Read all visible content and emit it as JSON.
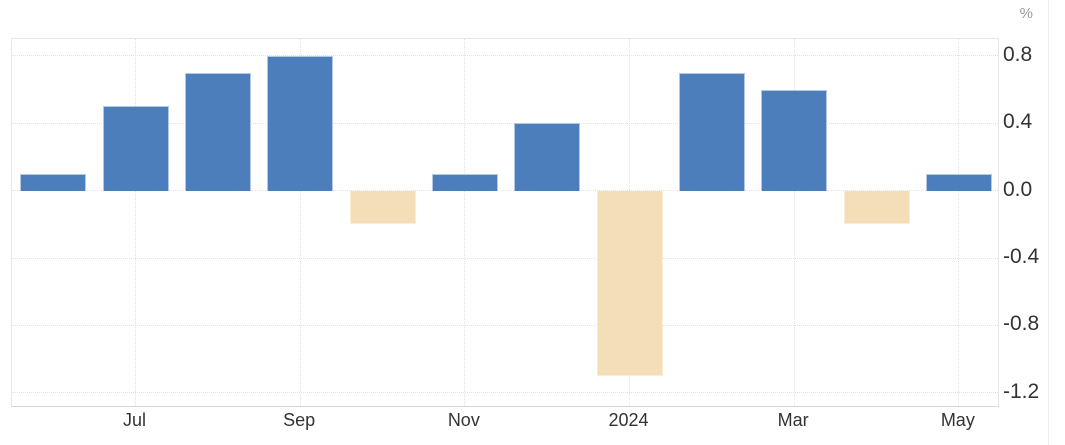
{
  "chart_data": {
    "type": "bar",
    "title": "",
    "unit": "%",
    "n_bars": 12,
    "values": [
      0.1,
      0.5,
      0.7,
      0.8,
      -0.2,
      0.1,
      0.4,
      -1.1,
      0.7,
      0.6,
      -0.2,
      0.1
    ],
    "x_ticks": [
      {
        "index": 1,
        "label": "Jul"
      },
      {
        "index": 3,
        "label": "Sep"
      },
      {
        "index": 5,
        "label": "Nov"
      },
      {
        "index": 7,
        "label": "2024"
      },
      {
        "index": 9,
        "label": "Mar"
      },
      {
        "index": 11,
        "label": "May"
      }
    ],
    "y_ticks": [
      {
        "value": 0.8,
        "label": "0.8"
      },
      {
        "value": 0.4,
        "label": "0.4"
      },
      {
        "value": 0.0,
        "label": "0.0"
      },
      {
        "value": -0.4,
        "label": "-0.4"
      },
      {
        "value": -0.8,
        "label": "-0.8"
      },
      {
        "value": -1.2,
        "label": "-1.2"
      }
    ],
    "ylim": [
      -1.29,
      0.9
    ],
    "grid": "dotted",
    "legend": "none",
    "colors": {
      "positive_bar": "#4d7ebc",
      "positive_bar_border": "#b3c9e3",
      "negative_bar": "#f4deb7",
      "negative_bar_border": "#f9edd4",
      "gridline": "#e2e2e2",
      "plot_border": "#e7e7e7",
      "axis_line": "#d6d6d6",
      "tick_text": "#333333",
      "unit_text": "#999999"
    }
  }
}
